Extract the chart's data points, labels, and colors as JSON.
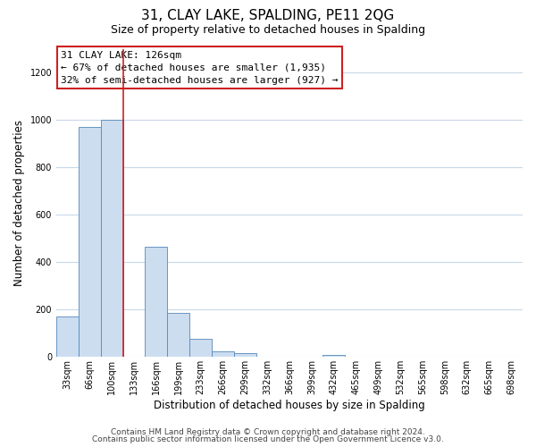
{
  "title": "31, CLAY LAKE, SPALDING, PE11 2QG",
  "subtitle": "Size of property relative to detached houses in Spalding",
  "xlabel": "Distribution of detached houses by size in Spalding",
  "ylabel": "Number of detached properties",
  "bar_color": "#ccddf0",
  "bar_edge_color": "#5588bb",
  "marker_line_color": "#cc2222",
  "categories": [
    "33sqm",
    "66sqm",
    "100sqm",
    "133sqm",
    "166sqm",
    "199sqm",
    "233sqm",
    "266sqm",
    "299sqm",
    "332sqm",
    "366sqm",
    "399sqm",
    "432sqm",
    "465sqm",
    "499sqm",
    "532sqm",
    "565sqm",
    "598sqm",
    "632sqm",
    "665sqm",
    "698sqm"
  ],
  "values": [
    170,
    970,
    1000,
    0,
    465,
    185,
    75,
    25,
    15,
    0,
    0,
    0,
    10,
    0,
    0,
    0,
    0,
    0,
    0,
    0,
    0
  ],
  "ylim": [
    0,
    1300
  ],
  "yticks": [
    0,
    200,
    400,
    600,
    800,
    1000,
    1200
  ],
  "annotation_title": "31 CLAY LAKE: 126sqm",
  "annotation_line1": "← 67% of detached houses are smaller (1,935)",
  "annotation_line2": "32% of semi-detached houses are larger (927) →",
  "footer_line1": "Contains HM Land Registry data © Crown copyright and database right 2024.",
  "footer_line2": "Contains public sector information licensed under the Open Government Licence v3.0.",
  "background_color": "#ffffff",
  "grid_color": "#c8d8e8",
  "title_fontsize": 11,
  "subtitle_fontsize": 9,
  "axis_label_fontsize": 8.5,
  "tick_fontsize": 7,
  "annotation_fontsize": 8,
  "footer_fontsize": 6.5
}
